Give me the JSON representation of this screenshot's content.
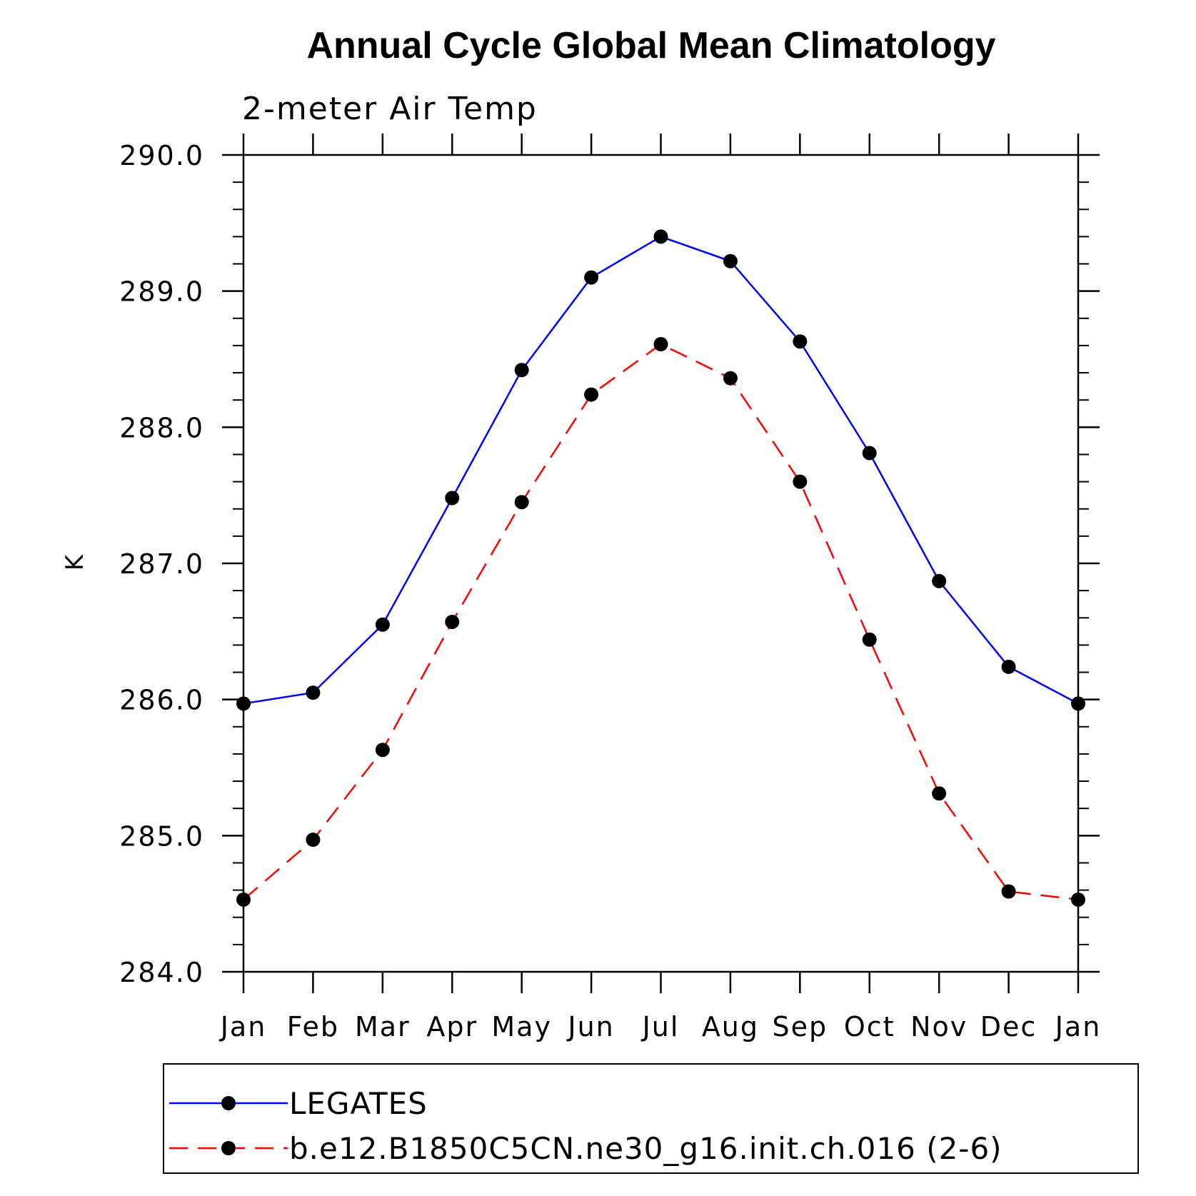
{
  "chart_data": {
    "type": "line",
    "title": "Annual Cycle Global Mean Climatology",
    "subtitle": "2-meter Air Temp",
    "xlabel": "",
    "ylabel": "K",
    "categories": [
      "Jan",
      "Feb",
      "Mar",
      "Apr",
      "May",
      "Jun",
      "Jul",
      "Aug",
      "Sep",
      "Oct",
      "Nov",
      "Dec",
      "Jan"
    ],
    "ylim": [
      284.0,
      290.0
    ],
    "yticks": [
      "284.0",
      "285.0",
      "286.0",
      "287.0",
      "288.0",
      "289.0",
      "290.0"
    ],
    "grid": false,
    "legend_position": "bottom",
    "series": [
      {
        "name": "LEGATES",
        "color": "#0000ff",
        "line_style": "solid",
        "marker": "filled-circle",
        "values": [
          285.97,
          286.05,
          286.55,
          287.48,
          288.42,
          289.1,
          289.4,
          289.22,
          288.63,
          287.81,
          286.87,
          286.24,
          285.97
        ]
      },
      {
        "name": "b.e12.B1850C5CN.ne30_g16.init.ch.016 (2-6)",
        "color": "#ff0000",
        "line_style": "dashed",
        "marker": "filled-circle",
        "values": [
          284.53,
          284.97,
          285.63,
          286.57,
          287.45,
          288.24,
          288.61,
          288.36,
          287.6,
          286.44,
          285.31,
          284.59,
          284.53
        ]
      }
    ]
  }
}
